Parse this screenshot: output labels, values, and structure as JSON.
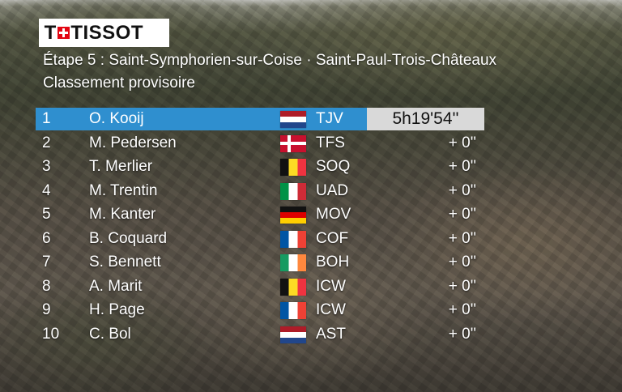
{
  "logo": {
    "text": "TISSOT"
  },
  "stage": {
    "title": "Étape 5 : Saint-Symphorien-sur-Coise · Saint-Paul-Trois-Châteaux",
    "subtitle": "Classement provisoire"
  },
  "standings": [
    {
      "rank": "1",
      "rider": "O. Kooij",
      "flag": "netherlands-flag",
      "team": "TJV",
      "time": "5h19'54''"
    },
    {
      "rank": "2",
      "rider": "M. Pedersen",
      "flag": "denmark-flag",
      "team": "TFS",
      "time": "+ 0''"
    },
    {
      "rank": "3",
      "rider": "T. Merlier",
      "flag": "belgium-flag",
      "team": "SOQ",
      "time": "+ 0''"
    },
    {
      "rank": "4",
      "rider": "M. Trentin",
      "flag": "italy-flag",
      "team": "UAD",
      "time": "+ 0''"
    },
    {
      "rank": "5",
      "rider": "M. Kanter",
      "flag": "germany-flag",
      "team": "MOV",
      "time": "+ 0''"
    },
    {
      "rank": "6",
      "rider": "B. Coquard",
      "flag": "france-flag",
      "team": "COF",
      "time": "+ 0''"
    },
    {
      "rank": "7",
      "rider": "S. Bennett",
      "flag": "ireland-flag",
      "team": "BOH",
      "time": "+ 0''"
    },
    {
      "rank": "8",
      "rider": "A. Marit",
      "flag": "belgium-flag",
      "team": "ICW",
      "time": "+ 0''"
    },
    {
      "rank": "9",
      "rider": "H. Page",
      "flag": "france-flag",
      "team": "ICW",
      "time": "+ 0''"
    },
    {
      "rank": "10",
      "rider": "C. Bol",
      "flag": "netherlands-flag",
      "team": "AST",
      "time": "+ 0''"
    }
  ],
  "colors": {
    "leader_row": "#2f8fcf",
    "time_box": "#d9d9d9",
    "logo_cross": "#e30613"
  }
}
